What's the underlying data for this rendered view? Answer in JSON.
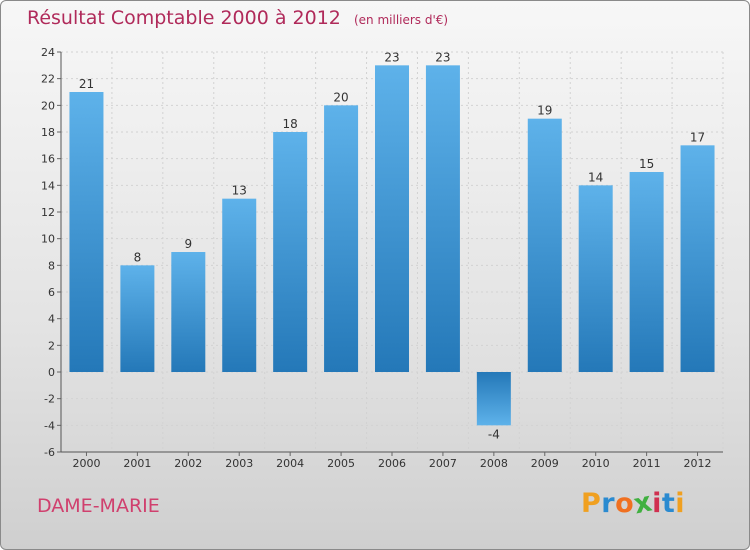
{
  "header": {
    "title": "Résultat Comptable 2000 à 2012",
    "unit": "(en milliers d'€)"
  },
  "footer": {
    "commune": "DAME-MARIE",
    "brand_letters": [
      "P",
      "r",
      "o",
      "x",
      "i",
      "t",
      "i"
    ],
    "brand_colors": [
      "#f0a020",
      "#2a8ad0",
      "#f07020",
      "#40b040",
      "#d03050",
      "#2a8ad0",
      "#f0a020"
    ]
  },
  "chart_data": {
    "type": "bar",
    "title": "Résultat Comptable 2000 à 2012",
    "subtitle": "(en milliers d'€)",
    "categories": [
      "2000",
      "2001",
      "2002",
      "2003",
      "2004",
      "2005",
      "2006",
      "2007",
      "2008",
      "2009",
      "2010",
      "2011",
      "2012"
    ],
    "values": [
      21,
      8,
      9,
      13,
      18,
      20,
      23,
      23,
      -4,
      19,
      14,
      15,
      17
    ],
    "yticks": [
      -6,
      -4,
      -2,
      0,
      2,
      4,
      6,
      8,
      10,
      12,
      14,
      16,
      18,
      20,
      22,
      24
    ],
    "ylim": [
      -6,
      24
    ],
    "xlabel": "",
    "ylabel": "",
    "grid": true,
    "bar_color_top": "#5eb2ea",
    "bar_color_bottom": "#2478b8"
  }
}
